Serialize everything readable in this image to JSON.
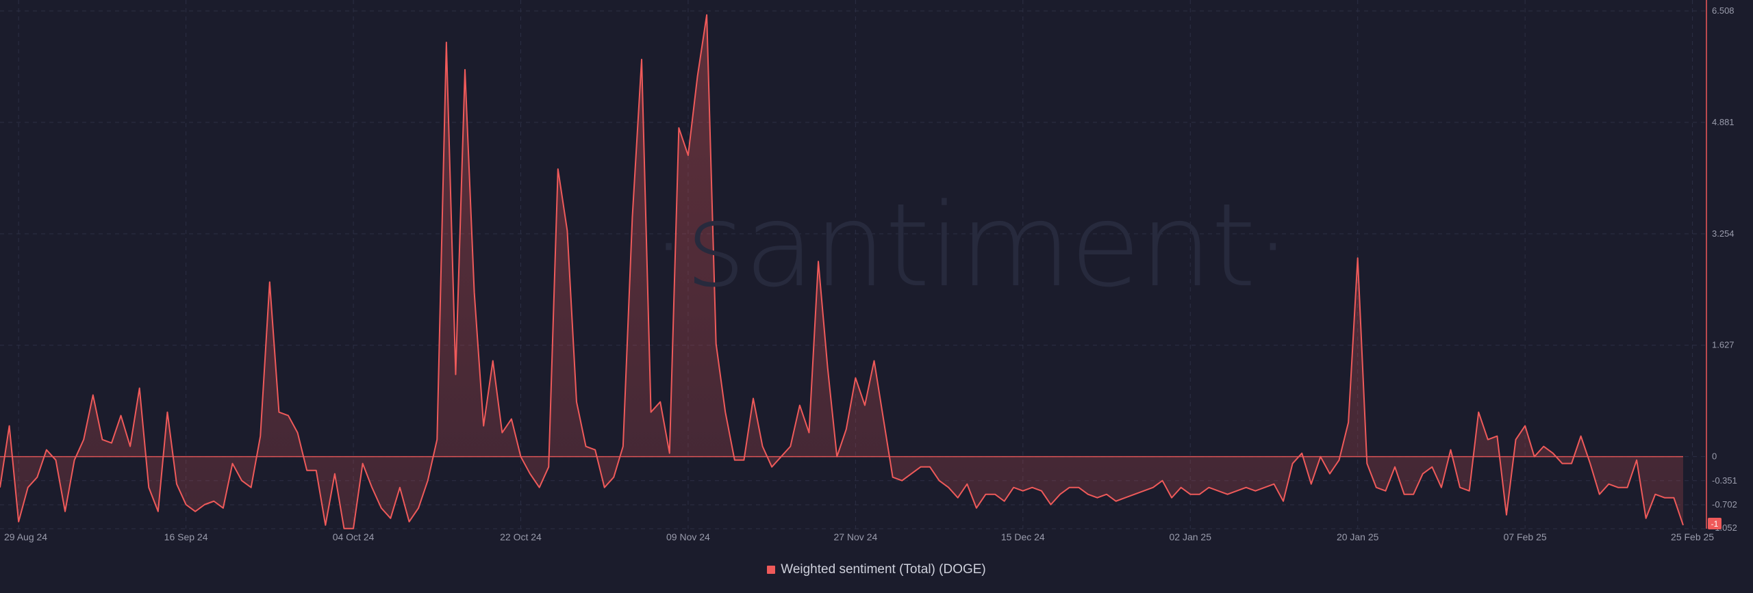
{
  "watermark": "·santiment·",
  "colors": {
    "background": "#1b1c2c",
    "series": "#ef5a5a",
    "grid": "#2c2f44",
    "axis_text": "#9a9cac"
  },
  "chart_data": {
    "type": "area",
    "title": "",
    "xlabel": "",
    "ylabel": "",
    "ylim": [
      -1.052,
      6.508
    ],
    "y_ticks": [
      "6.508",
      "4.881",
      "3.254",
      "1.627",
      "0",
      "-0.351",
      "-0.702",
      "-1.052"
    ],
    "x_ticks": [
      {
        "label": "29 Aug 24",
        "day": 2
      },
      {
        "label": "16 Sep 24",
        "day": 20
      },
      {
        "label": "04 Oct 24",
        "day": 38
      },
      {
        "label": "22 Oct 24",
        "day": 56
      },
      {
        "label": "09 Nov 24",
        "day": 74
      },
      {
        "label": "27 Nov 24",
        "day": 92
      },
      {
        "label": "15 Dec 24",
        "day": 110
      },
      {
        "label": "02 Jan 25",
        "day": 128
      },
      {
        "label": "20 Jan 25",
        "day": 146
      },
      {
        "label": "07 Feb 25",
        "day": 164
      },
      {
        "label": "25 Feb 25",
        "day": 182
      }
    ],
    "legend": {
      "position": "bottom-center",
      "label": "Weighted sentiment (Total) (DOGE)"
    },
    "last_value_badge": "-1",
    "series": [
      {
        "name": "Weighted sentiment (Total) (DOGE)",
        "color": "#ef5a5a",
        "start": "27 Aug 24",
        "values": [
          -0.45,
          0.45,
          -0.95,
          -0.45,
          -0.3,
          0.1,
          -0.05,
          -0.8,
          -0.05,
          0.25,
          0.9,
          0.25,
          0.2,
          0.6,
          0.15,
          1.0,
          -0.45,
          -0.8,
          0.65,
          -0.4,
          -0.7,
          -0.8,
          -0.7,
          -0.65,
          -0.75,
          -0.1,
          -0.35,
          -0.45,
          0.3,
          2.55,
          0.65,
          0.6,
          0.35,
          -0.2,
          -0.2,
          -1.0,
          -0.25,
          -1.05,
          -1.05,
          -0.1,
          -0.45,
          -0.75,
          -0.9,
          -0.45,
          -0.95,
          -0.75,
          -0.35,
          0.25,
          6.05,
          1.2,
          5.65,
          2.4,
          0.45,
          1.4,
          0.35,
          0.55,
          0.0,
          -0.25,
          -0.45,
          -0.15,
          4.2,
          3.3,
          0.8,
          0.15,
          0.1,
          -0.45,
          -0.3,
          0.15,
          3.5,
          5.8,
          0.65,
          0.8,
          0.05,
          4.8,
          4.4,
          5.55,
          6.45,
          1.65,
          0.65,
          -0.05,
          -0.05,
          0.85,
          0.15,
          -0.15,
          0.0,
          0.15,
          0.75,
          0.35,
          2.85,
          1.3,
          0.0,
          0.4,
          1.15,
          0.75,
          1.4,
          0.55,
          -0.3,
          -0.35,
          -0.25,
          -0.15,
          -0.15,
          -0.35,
          -0.45,
          -0.6,
          -0.4,
          -0.75,
          -0.55,
          -0.55,
          -0.65,
          -0.45,
          -0.5,
          -0.45,
          -0.5,
          -0.7,
          -0.55,
          -0.45,
          -0.45,
          -0.55,
          -0.6,
          -0.55,
          -0.65,
          -0.6,
          -0.55,
          -0.5,
          -0.45,
          -0.35,
          -0.6,
          -0.45,
          -0.55,
          -0.55,
          -0.45,
          -0.5,
          -0.55,
          -0.5,
          -0.45,
          -0.5,
          -0.45,
          -0.4,
          -0.65,
          -0.1,
          0.05,
          -0.4,
          0.0,
          -0.25,
          -0.05,
          0.5,
          2.9,
          -0.1,
          -0.45,
          -0.5,
          -0.15,
          -0.55,
          -0.55,
          -0.25,
          -0.15,
          -0.45,
          0.1,
          -0.45,
          -0.5,
          0.65,
          0.25,
          0.3,
          -0.85,
          0.25,
          0.45,
          0.0,
          0.15,
          0.05,
          -0.1,
          -0.1,
          0.3,
          -0.1,
          -0.55,
          -0.4,
          -0.45,
          -0.45,
          -0.05,
          -0.9,
          -0.55,
          -0.6,
          -0.6,
          -1.0
        ]
      }
    ]
  }
}
